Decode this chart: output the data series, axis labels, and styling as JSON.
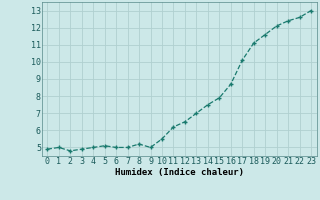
{
  "x": [
    0,
    1,
    2,
    3,
    4,
    5,
    6,
    7,
    8,
    9,
    10,
    11,
    12,
    13,
    14,
    15,
    16,
    17,
    18,
    19,
    20,
    21,
    22,
    23
  ],
  "y": [
    4.9,
    5.0,
    4.8,
    4.9,
    5.0,
    5.1,
    5.0,
    5.0,
    5.2,
    5.0,
    5.5,
    6.2,
    6.5,
    7.0,
    7.5,
    7.9,
    8.7,
    10.1,
    11.1,
    11.6,
    12.1,
    12.4,
    12.6,
    13.0
  ],
  "line_color": "#1a7a6e",
  "marker": "+",
  "bg_color": "#cce8e8",
  "grid_color": "#b0d0d0",
  "xlabel": "Humidex (Indice chaleur)",
  "xlim": [
    -0.5,
    23.5
  ],
  "ylim": [
    4.5,
    13.5
  ],
  "yticks": [
    5,
    6,
    7,
    8,
    9,
    10,
    11,
    12,
    13
  ],
  "xticks": [
    0,
    1,
    2,
    3,
    4,
    5,
    6,
    7,
    8,
    9,
    10,
    11,
    12,
    13,
    14,
    15,
    16,
    17,
    18,
    19,
    20,
    21,
    22,
    23
  ],
  "label_fontsize": 6.5,
  "tick_fontsize": 6.0
}
